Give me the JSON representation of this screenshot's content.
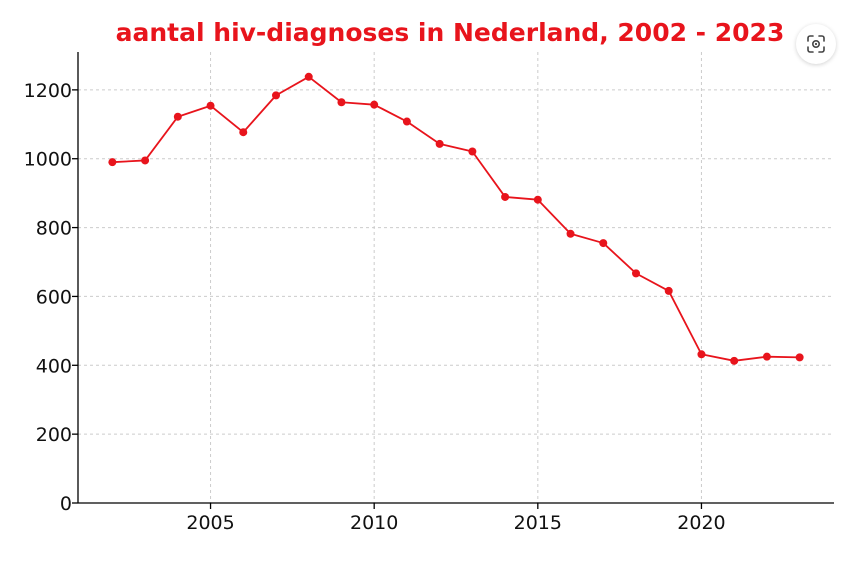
{
  "overlay": {
    "lens_icon": "visual-search-icon"
  },
  "colors": {
    "series": "#e8141c",
    "title": "#e8141c",
    "grid": "#cccccc",
    "axis": "#000000"
  },
  "chart_data": {
    "type": "line",
    "title": "aantal hiv-diagnoses in Nederland, 2002 - 2023",
    "xlabel": "",
    "ylabel": "",
    "xlim": [
      2000.95,
      2024.05
    ],
    "ylim": [
      0,
      1310
    ],
    "grid": true,
    "legend": "none",
    "xticks": [
      2005,
      2010,
      2015,
      2020
    ],
    "yticks": [
      0,
      200,
      400,
      600,
      800,
      1000,
      1200
    ],
    "series": [
      {
        "x": [
          2002,
          2003,
          2004,
          2005,
          2006,
          2007,
          2008,
          2009,
          2010,
          2011,
          2012,
          2013,
          2014,
          2015,
          2016,
          2017,
          2018,
          2019,
          2020,
          2021,
          2022,
          2023
        ],
        "values": [
          990,
          995,
          1122,
          1154,
          1077,
          1184,
          1238,
          1164,
          1157,
          1108,
          1043,
          1021,
          889,
          881,
          782,
          755,
          667,
          616,
          432,
          413,
          425,
          423
        ]
      }
    ]
  }
}
